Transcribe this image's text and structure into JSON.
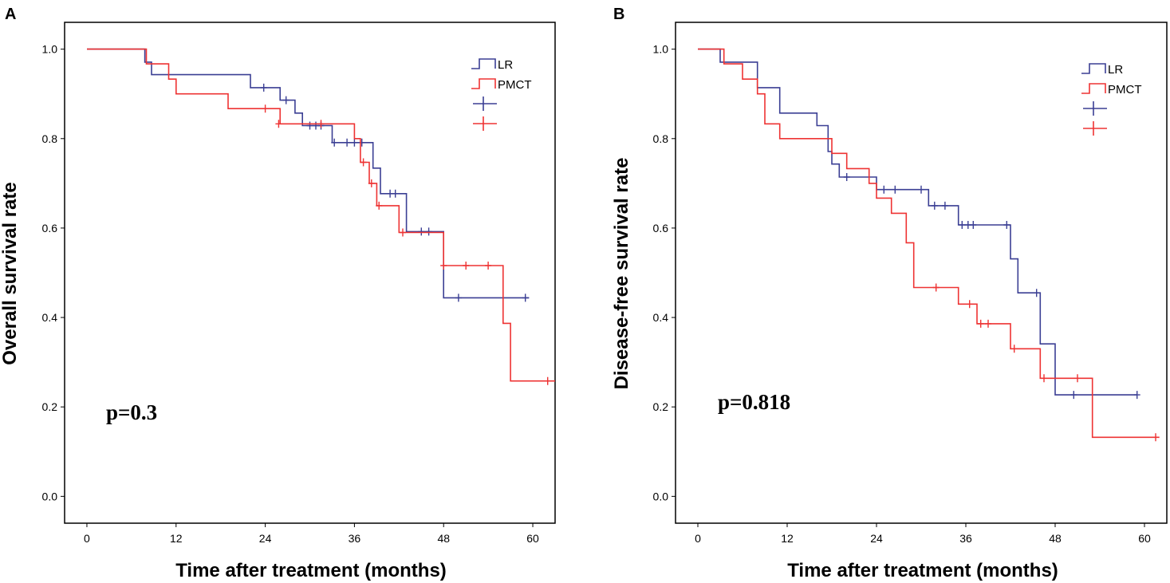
{
  "chart_data": [
    {
      "type": "line",
      "panel_label": "A",
      "title": "",
      "xlabel": "Time after treatment (months)",
      "ylabel": "Overall survival rate",
      "xlim": [
        -3,
        63
      ],
      "ylim": [
        -0.06,
        1.06
      ],
      "xticks": [
        0,
        12,
        24,
        36,
        48,
        60
      ],
      "xtick_labels": [
        "0",
        "12",
        "24",
        "36",
        "48",
        "60"
      ],
      "yticks": [
        0.0,
        0.2,
        0.4,
        0.6,
        0.8,
        1.0
      ],
      "ytick_labels": [
        "0.0",
        "0.2",
        "0.4",
        "0.6",
        "0.8",
        "1.0"
      ],
      "grid": false,
      "legend_position": "top-right",
      "annotation": "p=0.3",
      "legend": [
        "LR",
        "PMCT",
        "",
        ""
      ],
      "series": [
        {
          "name": "LR",
          "color": "#3b3f94",
          "steps": [
            [
              0,
              1.0
            ],
            [
              7.8,
              0.971
            ],
            [
              8.7,
              0.943
            ],
            [
              22.0,
              0.914
            ],
            [
              26.0,
              0.886
            ],
            [
              28.0,
              0.857
            ],
            [
              29.0,
              0.829
            ],
            [
              33.0,
              0.791
            ],
            [
              38.5,
              0.734
            ],
            [
              39.5,
              0.677
            ],
            [
              43.0,
              0.592
            ],
            [
              48.0,
              0.444
            ],
            [
              59.5,
              0.444
            ]
          ],
          "censored": [
            [
              23.8,
              0.914
            ],
            [
              26.8,
              0.886
            ],
            [
              30.0,
              0.829
            ],
            [
              30.8,
              0.829
            ],
            [
              31.5,
              0.829
            ],
            [
              33.3,
              0.791
            ],
            [
              35.0,
              0.791
            ],
            [
              36.0,
              0.791
            ],
            [
              37.0,
              0.791
            ],
            [
              40.8,
              0.677
            ],
            [
              41.5,
              0.677
            ],
            [
              45.0,
              0.592
            ],
            [
              46.0,
              0.592
            ],
            [
              50.0,
              0.444
            ],
            [
              59.0,
              0.444
            ]
          ]
        },
        {
          "name": "PMCT",
          "color": "#ee3333",
          "steps": [
            [
              0,
              1.0
            ],
            [
              8.0,
              0.967
            ],
            [
              11.0,
              0.933
            ],
            [
              12.0,
              0.9
            ],
            [
              19.0,
              0.867
            ],
            [
              26.0,
              0.833
            ],
            [
              36.0,
              0.8
            ],
            [
              36.8,
              0.747
            ],
            [
              38.0,
              0.7
            ],
            [
              39.0,
              0.65
            ],
            [
              42.0,
              0.59
            ],
            [
              48.0,
              0.516
            ],
            [
              56.0,
              0.387
            ],
            [
              57.0,
              0.258
            ],
            [
              63.0,
              0.258
            ]
          ],
          "censored": [
            [
              24.0,
              0.867
            ],
            [
              25.8,
              0.833
            ],
            [
              31.5,
              0.833
            ],
            [
              37.2,
              0.747
            ],
            [
              38.3,
              0.7
            ],
            [
              39.3,
              0.65
            ],
            [
              42.5,
              0.59
            ],
            [
              48.0,
              0.516
            ],
            [
              51.0,
              0.516
            ],
            [
              54.0,
              0.516
            ],
            [
              62.0,
              0.258
            ]
          ]
        }
      ]
    },
    {
      "type": "line",
      "panel_label": "B",
      "title": "",
      "xlabel": "Time after treatment (months)",
      "ylabel": "Disease-free survival rate",
      "xlim": [
        -3,
        63
      ],
      "ylim": [
        -0.06,
        1.06
      ],
      "xticks": [
        0,
        12,
        24,
        36,
        48,
        60
      ],
      "xtick_labels": [
        "0",
        "12",
        "24",
        "36",
        "48",
        "60"
      ],
      "yticks": [
        0.0,
        0.2,
        0.4,
        0.6,
        0.8,
        1.0
      ],
      "ytick_labels": [
        "0.0",
        "0.2",
        "0.4",
        "0.6",
        "0.8",
        "1.0"
      ],
      "grid": false,
      "legend_position": "top-right",
      "annotation": "p=0.818",
      "legend": [
        "LR",
        "PMCT",
        "",
        ""
      ],
      "series": [
        {
          "name": "LR",
          "color": "#3b3f94",
          "steps": [
            [
              0,
              1.0
            ],
            [
              3.0,
              0.971
            ],
            [
              8.0,
              0.914
            ],
            [
              11.0,
              0.857
            ],
            [
              16.0,
              0.829
            ],
            [
              17.5,
              0.771
            ],
            [
              18.0,
              0.743
            ],
            [
              19.0,
              0.714
            ],
            [
              24.0,
              0.686
            ],
            [
              31.0,
              0.65
            ],
            [
              35.0,
              0.607
            ],
            [
              42.0,
              0.531
            ],
            [
              43.0,
              0.455
            ],
            [
              46.0,
              0.341
            ],
            [
              48.0,
              0.227
            ],
            [
              59.0,
              0.227
            ]
          ],
          "censored": [
            [
              20.0,
              0.714
            ],
            [
              25.0,
              0.686
            ],
            [
              26.5,
              0.686
            ],
            [
              30.0,
              0.686
            ],
            [
              31.8,
              0.65
            ],
            [
              33.2,
              0.65
            ],
            [
              35.5,
              0.607
            ],
            [
              36.3,
              0.607
            ],
            [
              37.0,
              0.607
            ],
            [
              41.5,
              0.607
            ],
            [
              45.5,
              0.455
            ],
            [
              50.5,
              0.227
            ],
            [
              59.0,
              0.227
            ]
          ]
        },
        {
          "name": "PMCT",
          "color": "#ee3333",
          "steps": [
            [
              0,
              1.0
            ],
            [
              3.5,
              0.967
            ],
            [
              6.0,
              0.933
            ],
            [
              8.0,
              0.9
            ],
            [
              9.0,
              0.833
            ],
            [
              11.0,
              0.8
            ],
            [
              18.0,
              0.767
            ],
            [
              20.0,
              0.733
            ],
            [
              23.0,
              0.7
            ],
            [
              24.0,
              0.667
            ],
            [
              26.0,
              0.633
            ],
            [
              28.0,
              0.567
            ],
            [
              29.0,
              0.467
            ],
            [
              35.0,
              0.43
            ],
            [
              37.5,
              0.386
            ],
            [
              42.0,
              0.33
            ],
            [
              46.0,
              0.264
            ],
            [
              53.0,
              0.132
            ],
            [
              62.0,
              0.132
            ]
          ],
          "censored": [
            [
              32.0,
              0.467
            ],
            [
              36.5,
              0.43
            ],
            [
              38.0,
              0.386
            ],
            [
              39.0,
              0.386
            ],
            [
              42.5,
              0.33
            ],
            [
              46.5,
              0.264
            ],
            [
              51.0,
              0.264
            ],
            [
              61.5,
              0.132
            ]
          ]
        }
      ]
    }
  ]
}
